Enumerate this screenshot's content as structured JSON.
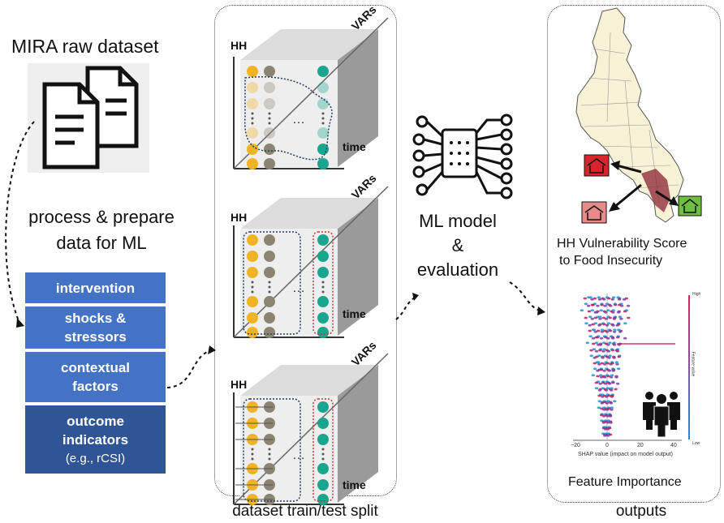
{
  "left": {
    "dataset_title": "MIRA raw dataset",
    "process_line1": "process & prepare",
    "process_line2": "data for ML",
    "boxes": [
      {
        "line1": "intervention",
        "line2": "",
        "line3": ""
      },
      {
        "line1": "shocks &",
        "line2": "stressors",
        "line3": ""
      },
      {
        "line1": "contextual",
        "line2": "factors",
        "line3": ""
      },
      {
        "line1": "outcome",
        "line2": "indicators",
        "line3": "(e.g., rCSI)"
      }
    ]
  },
  "split": {
    "caption": "dataset train/test split",
    "axis_hh": "HH",
    "axis_vars": "VARs",
    "axis_time": "time"
  },
  "model": {
    "line1": "ML model",
    "line2": "&",
    "line3": "evaluation"
  },
  "outputs": {
    "map_caption_line1": "HH Vulnerability Score",
    "map_caption_line2": "to Food Insecurity",
    "shap_axis_label": "SHAP value (impact on model output)",
    "shap_ticks": [
      "−20",
      "0",
      "20",
      "40"
    ],
    "shap_high": "High",
    "shap_low": "Low",
    "shap_feature_value": "Feature value",
    "feature_caption": "Feature Importance",
    "caption": "outputs"
  },
  "colors": {
    "box_blue": "#4472c4",
    "box_dark": "#2f5597",
    "dot_yellow": "#f0b323",
    "dot_gray": "#8c8472",
    "dot_teal": "#1aa58e",
    "house_red": "#d9242b",
    "house_pink": "#e88a8a",
    "house_green": "#6dbf3d"
  }
}
